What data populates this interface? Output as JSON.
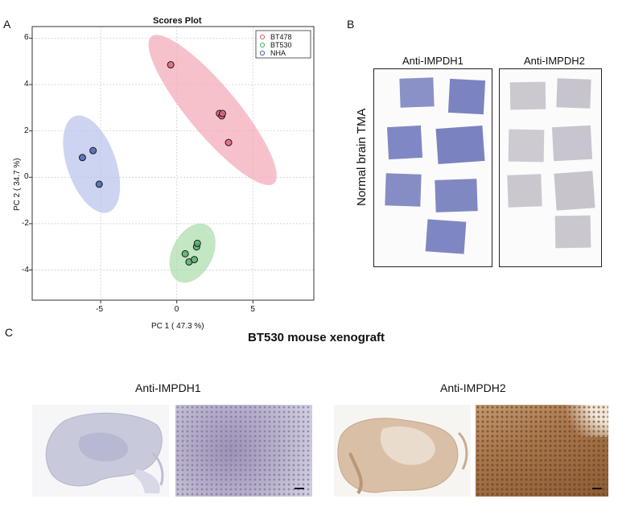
{
  "panel_labels": {
    "a": "A",
    "b": "B",
    "c": "C"
  },
  "scores_plot": {
    "title": "Scores Plot",
    "xlabel": "PC 1 ( 47.3 %)",
    "ylabel": "PC 2 ( 34.7 %)",
    "x_ticks": [
      "-5",
      "0",
      "5"
    ],
    "y_ticks": [
      "6",
      "4",
      "2",
      "0",
      "-2",
      "-4"
    ],
    "legend": [
      "BT478",
      "BT530",
      "NHA"
    ]
  },
  "chart_data": {
    "type": "scatter",
    "title": "Scores Plot",
    "xlabel": "PC 1 ( 47.3 %)",
    "ylabel": "PC 2 ( 34.7 %)",
    "xlim": [
      -9.5,
      9
    ],
    "ylim": [
      -5.3,
      6.5
    ],
    "grid": true,
    "legend_position": "top-right",
    "series": [
      {
        "name": "BT478",
        "color": "#e06478",
        "ellipse_color": "#f4a6b6",
        "points": [
          [
            -0.4,
            4.85
          ],
          [
            2.8,
            2.75
          ],
          [
            2.95,
            2.65
          ],
          [
            3.0,
            2.75
          ],
          [
            3.4,
            1.5
          ]
        ]
      },
      {
        "name": "BT530",
        "color": "#55b06a",
        "ellipse_color": "#a9dca9",
        "points": [
          [
            0.55,
            -3.3
          ],
          [
            0.8,
            -3.65
          ],
          [
            1.15,
            -3.55
          ],
          [
            1.3,
            -3.0
          ],
          [
            1.35,
            -2.85
          ]
        ]
      },
      {
        "name": "NHA",
        "color": "#4a62b0",
        "ellipse_color": "#b6c2ec",
        "points": [
          [
            -6.2,
            0.85
          ],
          [
            -5.5,
            1.15
          ],
          [
            -5.1,
            -0.3
          ]
        ]
      }
    ]
  },
  "panel_b": {
    "ihc1_title": "Anti-IMPDH1",
    "ihc2_title": "Anti-IMPDH2",
    "side_label": "Normal brain TMA",
    "ihc1_color": "#7f88c2",
    "ihc2_color": "#c9c6cf"
  },
  "panel_c": {
    "title": "BT530 mouse xenograft",
    "ihc1_title": "Anti-IMPDH1",
    "ihc2_title": "Anti-IMPDH2"
  }
}
